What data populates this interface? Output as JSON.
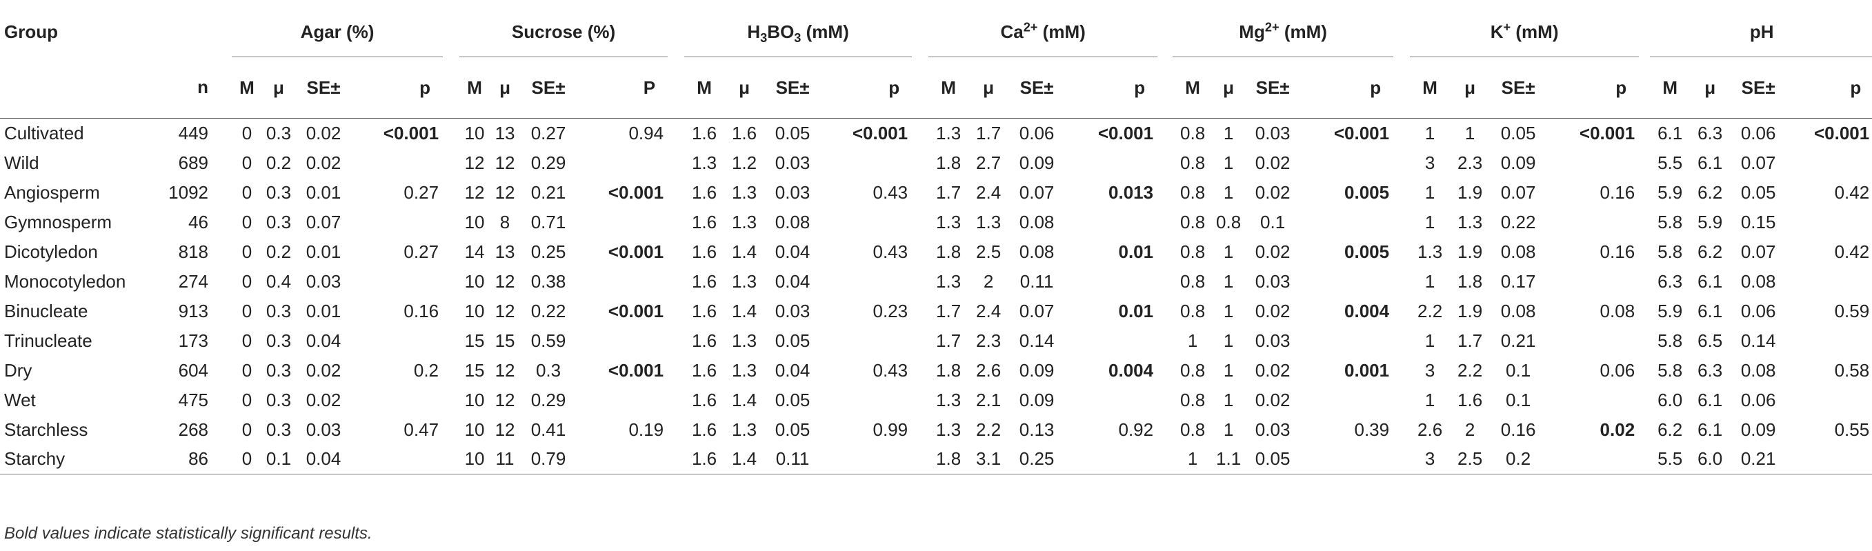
{
  "header": {
    "group_label": "Group",
    "n_label": "n",
    "groups": [
      {
        "pre": "Agar (%)",
        "sub": "",
        "sup": "",
        "post": ""
      },
      {
        "pre": "Sucrose (%)",
        "sub": "",
        "sup": "",
        "post": ""
      },
      {
        "pre": "H",
        "sub": "3",
        "mid": "BO",
        "sub2": "3",
        "post": " (mM)"
      },
      {
        "pre": "Ca",
        "sup": "2+",
        "post": " (mM)"
      },
      {
        "pre": "Mg",
        "sup": "2+",
        "post": " (mM)"
      },
      {
        "pre": "K",
        "sup": "+",
        "post": " (mM)"
      },
      {
        "pre": "pH",
        "sup": "",
        "post": ""
      }
    ],
    "sub_cols": [
      [
        "M",
        "μ",
        "SE±",
        "p"
      ],
      [
        "M",
        "μ",
        "SE±",
        "P"
      ],
      [
        "M",
        "μ",
        "SE±",
        "p"
      ],
      [
        "M",
        "μ",
        "SE±",
        "p"
      ],
      [
        "M",
        "μ",
        "SE±",
        "p"
      ],
      [
        "M",
        "μ",
        "SE±",
        "p"
      ],
      [
        "M",
        "μ",
        "SE±",
        "p"
      ]
    ]
  },
  "rows": [
    {
      "label": "Cultivated",
      "n": "449",
      "g": [
        [
          "0",
          "0.3",
          "0.02",
          "<0.001",
          true
        ],
        [
          "10",
          "13",
          "0.27",
          "0.94",
          false
        ],
        [
          "1.6",
          "1.6",
          "0.05",
          "<0.001",
          true
        ],
        [
          "1.3",
          "1.7",
          "0.06",
          "<0.001",
          true
        ],
        [
          "0.8",
          "1",
          "0.03",
          "<0.001",
          true
        ],
        [
          "1",
          "1",
          "0.05",
          "<0.001",
          true
        ],
        [
          "6.1",
          "6.3",
          "0.06",
          "<0.001",
          true
        ]
      ]
    },
    {
      "label": "Wild",
      "n": "689",
      "g": [
        [
          "0",
          "0.2",
          "0.02",
          "",
          false
        ],
        [
          "12",
          "12",
          "0.29",
          "",
          false
        ],
        [
          "1.3",
          "1.2",
          "0.03",
          "",
          false
        ],
        [
          "1.8",
          "2.7",
          "0.09",
          "",
          false
        ],
        [
          "0.8",
          "1",
          "0.02",
          "",
          false
        ],
        [
          "3",
          "2.3",
          "0.09",
          "",
          false
        ],
        [
          "5.5",
          "6.1",
          "0.07",
          "",
          false
        ]
      ]
    },
    {
      "label": "Angiosperm",
      "n": "1092",
      "g": [
        [
          "0",
          "0.3",
          "0.01",
          "0.27",
          false
        ],
        [
          "12",
          "12",
          "0.21",
          "<0.001",
          true
        ],
        [
          "1.6",
          "1.3",
          "0.03",
          "0.43",
          false
        ],
        [
          "1.7",
          "2.4",
          "0.07",
          "0.013",
          true
        ],
        [
          "0.8",
          "1",
          "0.02",
          "0.005",
          true
        ],
        [
          "1",
          "1.9",
          "0.07",
          "0.16",
          false
        ],
        [
          "5.9",
          "6.2",
          "0.05",
          "0.42",
          false
        ]
      ]
    },
    {
      "label": "Gymnosperm",
      "n": "46",
      "g": [
        [
          "0",
          "0.3",
          "0.07",
          "",
          false
        ],
        [
          "10",
          "8",
          "0.71",
          "",
          false
        ],
        [
          "1.6",
          "1.3",
          "0.08",
          "",
          false
        ],
        [
          "1.3",
          "1.3",
          "0.08",
          "",
          false
        ],
        [
          "0.8",
          "0.8",
          "0.1",
          "",
          false
        ],
        [
          "1",
          "1.3",
          "0.22",
          "",
          false
        ],
        [
          "5.8",
          "5.9",
          "0.15",
          "",
          false
        ]
      ]
    },
    {
      "label": "Dicotyledon",
      "n": "818",
      "g": [
        [
          "0",
          "0.2",
          "0.01",
          "0.27",
          false
        ],
        [
          "14",
          "13",
          "0.25",
          "<0.001",
          true
        ],
        [
          "1.6",
          "1.4",
          "0.04",
          "0.43",
          false
        ],
        [
          "1.8",
          "2.5",
          "0.08",
          "0.01",
          true
        ],
        [
          "0.8",
          "1",
          "0.02",
          "0.005",
          true
        ],
        [
          "1.3",
          "1.9",
          "0.08",
          "0.16",
          false
        ],
        [
          "5.8",
          "6.2",
          "0.07",
          "0.42",
          false
        ]
      ]
    },
    {
      "label": "Monocotyledon",
      "n": "274",
      "g": [
        [
          "0",
          "0.4",
          "0.03",
          "",
          false
        ],
        [
          "10",
          "12",
          "0.38",
          "",
          false
        ],
        [
          "1.6",
          "1.3",
          "0.04",
          "",
          false
        ],
        [
          "1.3",
          "2",
          "0.11",
          "",
          false
        ],
        [
          "0.8",
          "1",
          "0.03",
          "",
          false
        ],
        [
          "1",
          "1.8",
          "0.17",
          "",
          false
        ],
        [
          "6.3",
          "6.1",
          "0.08",
          "",
          false
        ]
      ]
    },
    {
      "label": "Binucleate",
      "n": "913",
      "g": [
        [
          "0",
          "0.3",
          "0.01",
          "0.16",
          false
        ],
        [
          "10",
          "12",
          "0.22",
          "<0.001",
          true
        ],
        [
          "1.6",
          "1.4",
          "0.03",
          "0.23",
          false
        ],
        [
          "1.7",
          "2.4",
          "0.07",
          "0.01",
          true
        ],
        [
          "0.8",
          "1",
          "0.02",
          "0.004",
          true
        ],
        [
          "2.2",
          "1.9",
          "0.08",
          "0.08",
          false
        ],
        [
          "5.9",
          "6.1",
          "0.06",
          "0.59",
          false
        ]
      ]
    },
    {
      "label": "Trinucleate",
      "n": "173",
      "g": [
        [
          "0",
          "0.3",
          "0.04",
          "",
          false
        ],
        [
          "15",
          "15",
          "0.59",
          "",
          false
        ],
        [
          "1.6",
          "1.3",
          "0.05",
          "",
          false
        ],
        [
          "1.7",
          "2.3",
          "0.14",
          "",
          false
        ],
        [
          "1",
          "1",
          "0.03",
          "",
          false
        ],
        [
          "1",
          "1.7",
          "0.21",
          "",
          false
        ],
        [
          "5.8",
          "6.5",
          "0.14",
          "",
          false
        ]
      ]
    },
    {
      "label": "Dry",
      "n": "604",
      "g": [
        [
          "0",
          "0.3",
          "0.02",
          "0.2",
          false
        ],
        [
          "15",
          "12",
          "0.3",
          "<0.001",
          true
        ],
        [
          "1.6",
          "1.3",
          "0.04",
          "0.43",
          false
        ],
        [
          "1.8",
          "2.6",
          "0.09",
          "0.004",
          true
        ],
        [
          "0.8",
          "1",
          "0.02",
          "0.001",
          true
        ],
        [
          "3",
          "2.2",
          "0.1",
          "0.06",
          false
        ],
        [
          "5.8",
          "6.3",
          "0.08",
          "0.58",
          false
        ]
      ]
    },
    {
      "label": "Wet",
      "n": "475",
      "g": [
        [
          "0",
          "0.3",
          "0.02",
          "",
          false
        ],
        [
          "10",
          "12",
          "0.29",
          "",
          false
        ],
        [
          "1.6",
          "1.4",
          "0.05",
          "",
          false
        ],
        [
          "1.3",
          "2.1",
          "0.09",
          "",
          false
        ],
        [
          "0.8",
          "1",
          "0.02",
          "",
          false
        ],
        [
          "1",
          "1.6",
          "0.1",
          "",
          false
        ],
        [
          "6.0",
          "6.1",
          "0.06",
          "",
          false
        ]
      ]
    },
    {
      "label": "Starchless",
      "n": "268",
      "g": [
        [
          "0",
          "0.3",
          "0.03",
          "0.47",
          false
        ],
        [
          "10",
          "12",
          "0.41",
          "0.19",
          false
        ],
        [
          "1.6",
          "1.3",
          "0.05",
          "0.99",
          false
        ],
        [
          "1.3",
          "2.2",
          "0.13",
          "0.92",
          false
        ],
        [
          "0.8",
          "1",
          "0.03",
          "0.39",
          false
        ],
        [
          "2.6",
          "2",
          "0.16",
          "0.02",
          true
        ],
        [
          "6.2",
          "6.1",
          "0.09",
          "0.55",
          false
        ]
      ]
    },
    {
      "label": "Starchy",
      "n": "86",
      "g": [
        [
          "0",
          "0.1",
          "0.04",
          "",
          false
        ],
        [
          "10",
          "11",
          "0.79",
          "",
          false
        ],
        [
          "1.6",
          "1.4",
          "0.11",
          "",
          false
        ],
        [
          "1.8",
          "3.1",
          "0.25",
          "",
          false
        ],
        [
          "1",
          "1.1",
          "0.05",
          "",
          false
        ],
        [
          "3",
          "2.5",
          "0.2",
          "",
          false
        ],
        [
          "5.5",
          "6.0",
          "0.21",
          "",
          false
        ]
      ]
    }
  ],
  "footnote": "Bold values indicate statistically significant results."
}
